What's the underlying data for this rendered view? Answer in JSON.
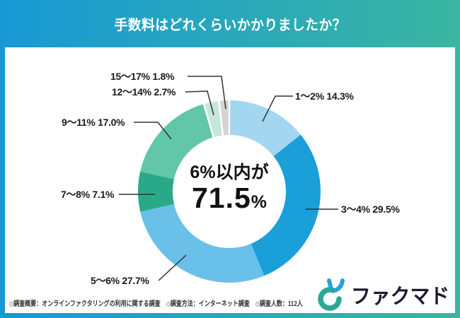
{
  "header": {
    "title": "手数料はどれくらいかかりましたか？"
  },
  "chart_data": {
    "type": "pie",
    "subtype": "donut",
    "title": "手数料はどれくらいかかりましたか？",
    "categories": [
      "1〜2%",
      "3〜4%",
      "5〜6%",
      "7〜8%",
      "9〜11%",
      "12〜14%",
      "15〜17%"
    ],
    "values": [
      14.3,
      29.5,
      27.7,
      7.1,
      17.0,
      2.7,
      1.8
    ],
    "value_labels": [
      "14.3%",
      "29.5%",
      "27.7%",
      "7.1%",
      "17.0%",
      "2.7%",
      "1.8%"
    ],
    "colors": [
      "#a3d6f0",
      "#1a9fd8",
      "#69c1e9",
      "#2aa989",
      "#61c7a8",
      "#c6e8da",
      "#d4d4d4"
    ],
    "start_angle_deg": 0,
    "direction": "clockwise",
    "legend_position": "none",
    "center_label": {
      "line1": "6%以内が",
      "value": "71.5",
      "unit": "%"
    }
  },
  "footer": {
    "note": "◇調査概要：オンラインファクタリングの利用に関する調査　◇調査方法：インターネット調査　◇調査人数：112人"
  },
  "logo": {
    "text": "ファクマド"
  },
  "colors": {
    "gradient_left": "#1899d5",
    "gradient_right": "#3ab6a1",
    "panel_bg": "#ffffff",
    "title_text": "#ffffff",
    "label_text": "#1a1a1a",
    "leader_line": "#333333",
    "logo_ring": "#2ba893",
    "logo_fingers": "#2aa0d6"
  }
}
